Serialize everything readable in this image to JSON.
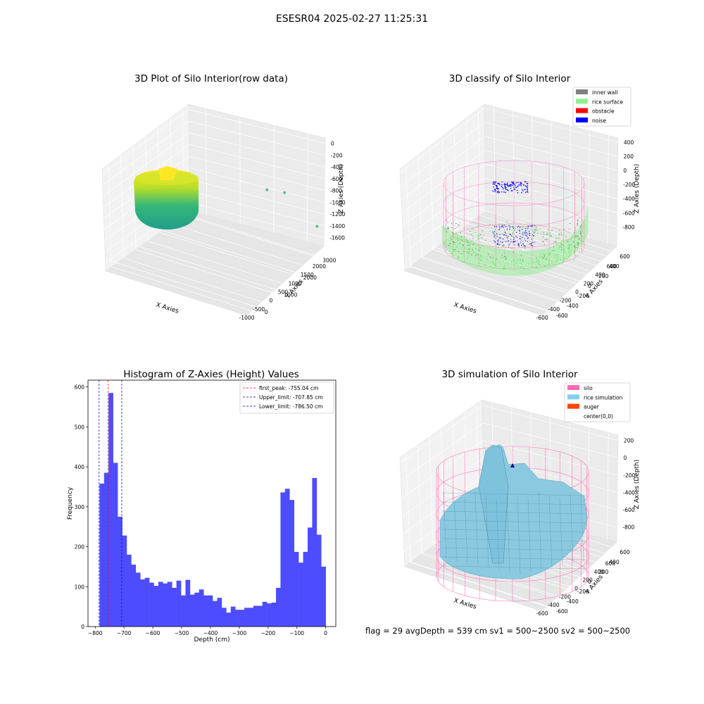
{
  "suptitle": "ESESR04 2025-02-27 11:25:31",
  "status_text": "flag = 29  avgDepth = 539 cm  sv1 = 500~2500  sv2 = 500~2500",
  "chart_data": [
    {
      "type": "scatter3d",
      "title": "3D Plot of Silo Interior(row data)",
      "xlabel": "X Axies",
      "ylabel": "Y Axies",
      "zlabel": "Z Axies (Depth)",
      "x_ticks": [
        "-1000",
        "-500",
        "0",
        "500",
        "1000",
        "1500",
        "2000"
      ],
      "y_ticks": [
        "0",
        "1000",
        "2000",
        "3000"
      ],
      "z_ticks": [
        "0",
        "-200",
        "-400",
        "-600",
        "-800",
        "-1000",
        "-1200",
        "-1400",
        "-1600"
      ],
      "colormap": "viridis",
      "outliers": [
        {
          "x": 1200,
          "y": 2200,
          "z": -600
        },
        {
          "x": 1500,
          "y": 2600,
          "z": -700
        },
        {
          "x": 2100,
          "y": 3100,
          "z": -1550
        }
      ]
    },
    {
      "type": "scatter3d",
      "title": "3D classify of Silo Interior",
      "xlabel": "X Axies",
      "ylabel": "Y Axies",
      "zlabel": "Z Axies (Depth)",
      "x_ticks": [
        "-600",
        "-400",
        "-200",
        "0",
        "200",
        "400",
        "600"
      ],
      "y_ticks": [
        "-600",
        "-400",
        "-200",
        "0",
        "200",
        "400",
        "600"
      ],
      "z_ticks": [
        "400",
        "200",
        "0",
        "-200",
        "-400",
        "-600",
        "-800"
      ],
      "legend": [
        {
          "label": "inner wall",
          "color": "#808080"
        },
        {
          "label": "rice surface",
          "color": "#90ee90"
        },
        {
          "label": "obstacle",
          "color": "#ff0000"
        },
        {
          "label": "noise",
          "color": "#0000ff"
        }
      ]
    },
    {
      "type": "bar",
      "title": "Histogram of Z-Axies (Height) Values",
      "xlabel": "Depth (cm)",
      "ylabel": "Frequency",
      "xlim": [
        -825,
        35
      ],
      "ylim": [
        0,
        617
      ],
      "bin_start": -785,
      "bin_width": 15.7,
      "values": [
        358,
        385,
        585,
        410,
        275,
        228,
        180,
        155,
        135,
        118,
        122,
        110,
        102,
        112,
        108,
        112,
        97,
        115,
        78,
        117,
        80,
        85,
        93,
        78,
        78,
        64,
        72,
        47,
        35,
        50,
        42,
        42,
        47,
        47,
        52,
        52,
        62,
        58,
        60,
        97,
        336,
        345,
        317,
        187,
        160,
        187,
        248,
        372,
        230,
        150
      ],
      "x_ticks": [
        -800,
        -700,
        -600,
        -500,
        -400,
        -300,
        -200,
        -100,
        0
      ],
      "y_ticks": [
        0,
        100,
        200,
        300,
        400,
        500,
        600
      ],
      "bar_color": "#4d4dff",
      "vlines": [
        {
          "label": "first_peak: -755.04 cm",
          "x": -755.04,
          "color": "#ff0000"
        },
        {
          "label": "Upper_limit: -707.85 cm",
          "x": -707.85,
          "color": "#0000cc"
        },
        {
          "label": "Lower_limit: -786.50 cm",
          "x": -786.5,
          "color": "#0000cc"
        }
      ],
      "legend_position": "top-right"
    },
    {
      "type": "surface3d",
      "title": "3D simulation of Silo Interior",
      "xlabel": "X Axies",
      "ylabel": "Y Axies",
      "zlabel": "Z Axies (Depth)",
      "x_ticks": [
        "-600",
        "-400",
        "-200",
        "0",
        "200",
        "400",
        "600"
      ],
      "y_ticks": [
        "-600",
        "-400",
        "-200",
        "0",
        "200",
        "400",
        "600"
      ],
      "z_ticks": [
        "200",
        "0",
        "-200",
        "-400",
        "-600",
        "-800"
      ],
      "legend": [
        {
          "label": "silo",
          "color": "#ff69b4"
        },
        {
          "label": "rice simulation",
          "color": "#87ceeb"
        },
        {
          "label": "auger",
          "color": "#ff4500"
        },
        {
          "label": "center(0,0)",
          "color": ""
        }
      ]
    }
  ]
}
